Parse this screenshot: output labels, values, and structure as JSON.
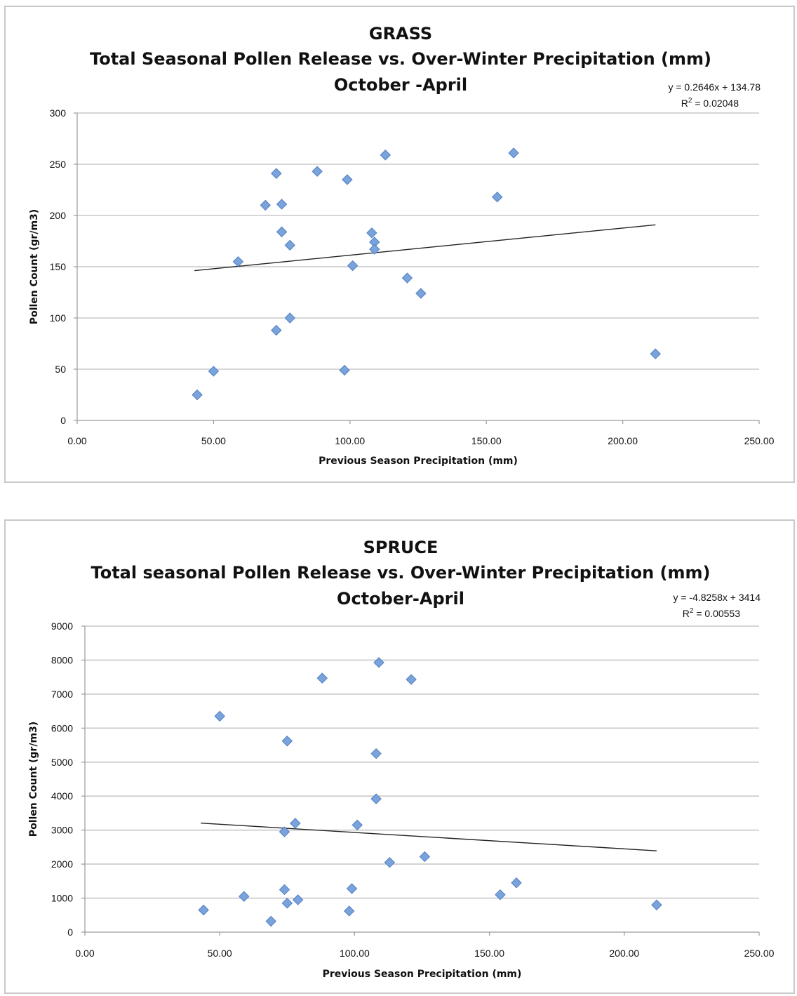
{
  "chart_data": [
    {
      "type": "scatter",
      "title_lines": [
        "GRASS",
        "Total Seasonal Pollen Release vs. Over-Winter Precipitation (mm)",
        "October -April"
      ],
      "xlabel": "Previous Season Precipitation (mm)",
      "ylabel": "Pollen Count (gr/m3)",
      "xlim": [
        0,
        250
      ],
      "ylim": [
        0,
        300
      ],
      "x_tick_values": [
        0,
        50,
        100,
        150,
        200,
        250
      ],
      "x_tick_labels": [
        "0.00",
        "50.00",
        "100.00",
        "150.00",
        "200.00",
        "250.00"
      ],
      "y_tick_values": [
        0,
        50,
        100,
        150,
        200,
        250,
        300
      ],
      "y_tick_labels": [
        "0",
        "50",
        "100",
        "150",
        "200",
        "250",
        "300"
      ],
      "grid": true,
      "marker_color": "#7aa3dc",
      "trendline": {
        "equation": "y = 0.2646x + 134.78",
        "r_squared_label": "R",
        "r_squared_sup": "2",
        "r_squared_value": " = 0.02048",
        "slope": 0.2646,
        "intercept": 134.78,
        "x_range": [
          43,
          212
        ]
      },
      "points": [
        {
          "x": 44,
          "y": 25
        },
        {
          "x": 50,
          "y": 48
        },
        {
          "x": 59,
          "y": 155
        },
        {
          "x": 69,
          "y": 210
        },
        {
          "x": 73,
          "y": 241
        },
        {
          "x": 73,
          "y": 88
        },
        {
          "x": 75,
          "y": 211
        },
        {
          "x": 75,
          "y": 184
        },
        {
          "x": 78,
          "y": 171
        },
        {
          "x": 78,
          "y": 100
        },
        {
          "x": 88,
          "y": 243
        },
        {
          "x": 98,
          "y": 49
        },
        {
          "x": 99,
          "y": 235
        },
        {
          "x": 101,
          "y": 151
        },
        {
          "x": 108,
          "y": 183
        },
        {
          "x": 109,
          "y": 174
        },
        {
          "x": 109,
          "y": 167
        },
        {
          "x": 113,
          "y": 259
        },
        {
          "x": 121,
          "y": 139
        },
        {
          "x": 126,
          "y": 124
        },
        {
          "x": 154,
          "y": 218
        },
        {
          "x": 160,
          "y": 261
        },
        {
          "x": 212,
          "y": 65
        }
      ]
    },
    {
      "type": "scatter",
      "title_lines": [
        "SPRUCE",
        "Total seasonal Pollen Release vs. Over-Winter Precipitation (mm)",
        "October-April"
      ],
      "xlabel": "Previous Season Precipitation (mm)",
      "ylabel": "Pollen Count (gr/m3)",
      "xlim": [
        0,
        250
      ],
      "ylim": [
        0,
        9000
      ],
      "x_tick_values": [
        0,
        50,
        100,
        150,
        200,
        250
      ],
      "x_tick_labels": [
        "0.00",
        "50.00",
        "100.00",
        "150.00",
        "200.00",
        "250.00"
      ],
      "y_tick_values": [
        0,
        1000,
        2000,
        3000,
        4000,
        5000,
        6000,
        7000,
        8000,
        9000
      ],
      "y_tick_labels": [
        "0",
        "1000",
        "2000",
        "3000",
        "4000",
        "5000",
        "6000",
        "7000",
        "8000",
        "9000"
      ],
      "grid": true,
      "marker_color": "#7aa3dc",
      "trendline": {
        "equation": "y = -4.8258x + 3414",
        "r_squared_label": "R",
        "r_squared_sup": "2",
        "r_squared_value": " = 0.00553",
        "slope": -4.8258,
        "intercept": 3414,
        "x_range": [
          43,
          212
        ]
      },
      "points": [
        {
          "x": 44,
          "y": 650
        },
        {
          "x": 50,
          "y": 6350
        },
        {
          "x": 59,
          "y": 1050
        },
        {
          "x": 69,
          "y": 320
        },
        {
          "x": 74,
          "y": 2950
        },
        {
          "x": 74,
          "y": 1250
        },
        {
          "x": 75,
          "y": 5620
        },
        {
          "x": 75,
          "y": 850
        },
        {
          "x": 78,
          "y": 3200
        },
        {
          "x": 79,
          "y": 950
        },
        {
          "x": 88,
          "y": 7470
        },
        {
          "x": 98,
          "y": 620
        },
        {
          "x": 99,
          "y": 1280
        },
        {
          "x": 101,
          "y": 3150
        },
        {
          "x": 108,
          "y": 3920
        },
        {
          "x": 108,
          "y": 5250
        },
        {
          "x": 109,
          "y": 7930
        },
        {
          "x": 113,
          "y": 2050
        },
        {
          "x": 121,
          "y": 7430
        },
        {
          "x": 126,
          "y": 2220
        },
        {
          "x": 154,
          "y": 1100
        },
        {
          "x": 160,
          "y": 1450
        },
        {
          "x": 212,
          "y": 800
        }
      ]
    }
  ]
}
